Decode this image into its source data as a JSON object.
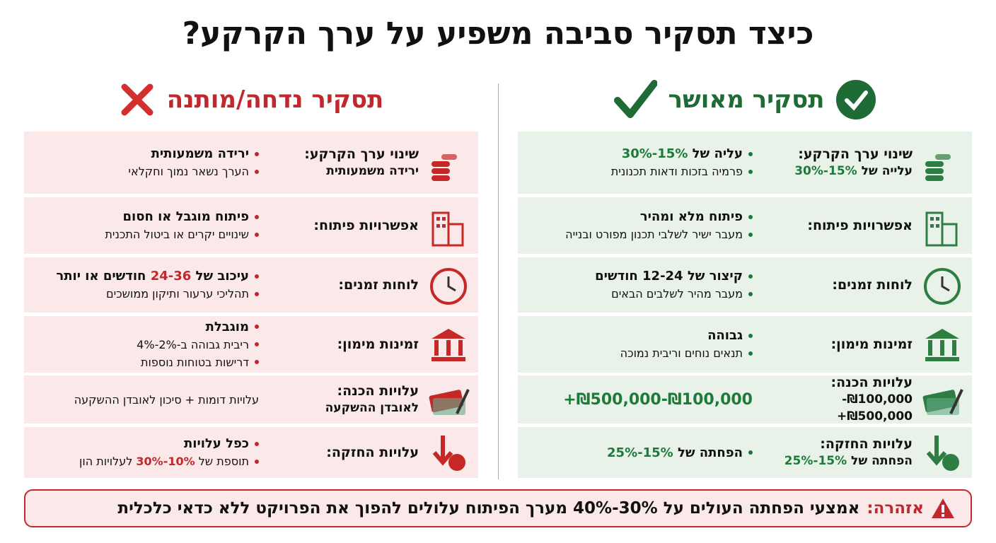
{
  "title": "כיצד תסקיר סביבה משפיע על ערך הקרקע?",
  "approved": {
    "heading": "תסקיר מאושר",
    "rows": [
      {
        "label": "שינוי ערך הקרקע:",
        "sublabel": [
          "עלייה של ",
          "15%-30%"
        ],
        "bullets": [
          [
            "עליה של ",
            "15%-30%"
          ],
          [
            "פרמיה בזכות ודאות תכנונית"
          ]
        ]
      },
      {
        "label": "אפשרויות פיתוח:",
        "bullets": [
          [
            "פיתוח מלא ומהיר"
          ],
          [
            "מעבר ישיר לשלבי תכנון מפורט ובנייה"
          ]
        ]
      },
      {
        "label": "לוחות זמנים:",
        "bullets": [
          [
            "קיצור של 12-24 חודשים"
          ],
          [
            "מעבר מהיר לשלבים הבאים"
          ]
        ]
      },
      {
        "label": "זמינות מימון:",
        "bullets": [
          [
            "גבוהה"
          ],
          [
            "תנאים נוחים וריבית נמוכה"
          ]
        ]
      },
      {
        "label": "עלויות הכנה:",
        "sublabel": [
          "₪100,000-₪500,000+"
        ],
        "note": "₪100,000-₪500,000+"
      },
      {
        "label": "עלויות החזקה:",
        "sublabel": [
          "הפחתה של ",
          "15%-25%"
        ],
        "bullets": [
          [
            "הפחתה של ",
            "15%-25%"
          ]
        ]
      }
    ]
  },
  "rejected": {
    "heading": "תסקיר נדחה/מותנה",
    "rows": [
      {
        "label": "שינוי ערך הקרקע:",
        "sublabel": [
          "ירידה משמעותית"
        ],
        "bullets": [
          [
            "ירידה משמעותית"
          ],
          [
            "הערך נשאר נמוך וחקלאי"
          ]
        ]
      },
      {
        "label": "אפשרויות פיתוח:",
        "bullets": [
          [
            "פיתוח מוגבל או חסום"
          ],
          [
            "שינויים יקרים או ביטול התכנית"
          ]
        ]
      },
      {
        "label": "לוחות זמנים:",
        "bullets": [
          [
            "עיכוב של ",
            "24-36",
            " חודשים או יותר"
          ],
          [
            "תהליכי ערעור ותיקון ממושכים"
          ]
        ]
      },
      {
        "label": "זמינות מימון:",
        "bullets": [
          [
            "מוגבלת"
          ],
          [
            "ריבית גבוהה ב-2%-4%"
          ],
          [
            "דרישות בטוחות נוספות"
          ]
        ]
      },
      {
        "label": "עלויות הכנה:",
        "sublabel": [
          "לאובדן ההשקעה"
        ],
        "note": "עלויות דומות + סיכון לאובדן ההשקעה"
      },
      {
        "label": "עלויות החזקה:",
        "bullets": [
          [
            "כפל עלויות"
          ],
          [
            "תוספת של ",
            "10%-30%",
            " לעלויות הון"
          ]
        ]
      }
    ]
  },
  "warning": {
    "label": "אזהרה:",
    "text": "אמצעי הפחתה העולים על 30%-40% מערך הפיתוח עלולים להפוך את הפרויקט ללא כדאי כלכלית"
  }
}
